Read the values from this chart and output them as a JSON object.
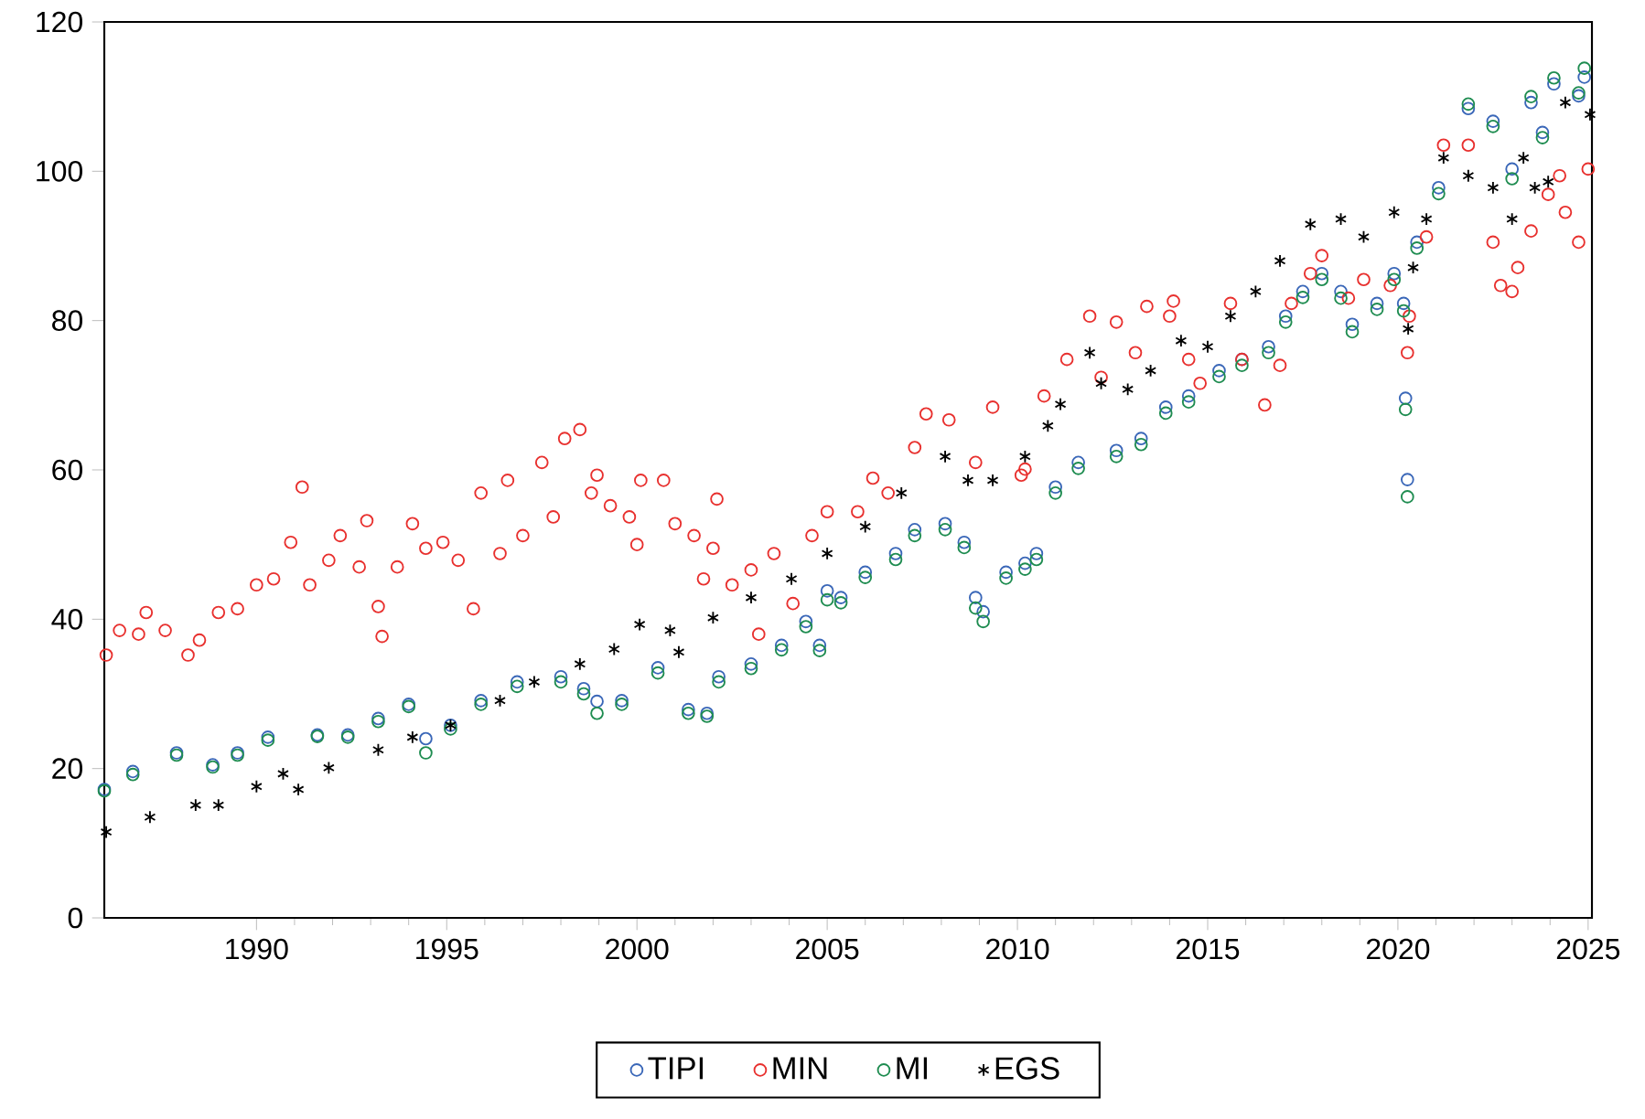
{
  "chart_data": {
    "type": "scatter",
    "xlim": [
      1986,
      2025.1
    ],
    "ylim": [
      0,
      120
    ],
    "xticks": [
      1990,
      1995,
      2000,
      2005,
      2010,
      2015,
      2020,
      2025
    ],
    "yticks": [
      0,
      20,
      40,
      60,
      80,
      100,
      120
    ],
    "grid": false,
    "legend": "bottom",
    "series": [
      {
        "name": "TIPI",
        "color": "#3a67b8",
        "marker": "circle",
        "x": [
          1986.0,
          1986.75,
          1987.9,
          1988.85,
          1989.5,
          1990.3,
          1991.6,
          1992.4,
          1993.2,
          1994.0,
          1994.45,
          1995.1,
          1995.9,
          1996.85,
          1998.0,
          1998.6,
          1998.95,
          1999.6,
          2000.55,
          2001.35,
          2001.84,
          2002.15,
          2003.0,
          2003.8,
          2004.44,
          2004.8,
          2005.0,
          2005.36,
          2006.0,
          2006.8,
          2007.3,
          2008.1,
          2008.6,
          2008.9,
          2009.1,
          2009.7,
          2010.2,
          2010.5,
          2011.0,
          2011.6,
          2012.6,
          2013.25,
          2013.9,
          2014.5,
          2015.3,
          2015.9,
          2016.6,
          2017.05,
          2017.5,
          2018.0,
          2018.5,
          2018.8,
          2019.45,
          2019.9,
          2020.15,
          2020.2,
          2020.25,
          2020.5,
          2021.07,
          2021.85,
          2022.5,
          2023.0,
          2023.5,
          2023.8,
          2024.1,
          2024.75,
          2024.9
        ],
        "values": [
          17.2,
          19.6,
          22.1,
          20.5,
          22.1,
          24.2,
          24.5,
          24.5,
          26.7,
          28.6,
          24.0,
          25.8,
          29.1,
          31.6,
          32.3,
          30.7,
          29.0,
          29.1,
          33.5,
          27.9,
          27.4,
          32.3,
          34.0,
          36.5,
          39.7,
          36.5,
          43.8,
          42.9,
          46.3,
          48.8,
          52.0,
          52.8,
          50.3,
          42.9,
          41.0,
          46.3,
          47.5,
          48.8,
          57.7,
          61.0,
          62.6,
          64.2,
          68.4,
          69.9,
          73.3,
          74.8,
          76.5,
          80.6,
          83.9,
          86.3,
          83.9,
          79.5,
          82.3,
          86.3,
          82.3,
          69.6,
          58.7,
          90.5,
          97.8,
          108.4,
          106.7,
          100.3,
          109.2,
          105.2,
          111.7,
          110.1,
          112.6
        ]
      },
      {
        "name": "MIN",
        "color": "#e8302e",
        "marker": "circle",
        "x": [
          1986.05,
          1986.4,
          1986.9,
          1987.1,
          1987.6,
          1988.2,
          1988.5,
          1989.0,
          1989.5,
          1990.0,
          1990.45,
          1990.9,
          1991.2,
          1991.4,
          1991.9,
          1992.2,
          1992.7,
          1992.9,
          1993.2,
          1993.3,
          1993.7,
          1994.1,
          1994.45,
          1994.9,
          1995.3,
          1995.7,
          1995.9,
          1996.4,
          1996.6,
          1997.0,
          1997.5,
          1997.8,
          1998.1,
          1998.5,
          1998.8,
          1998.95,
          1999.3,
          1999.8,
          2000.0,
          2000.1,
          2000.7,
          2001.0,
          2001.5,
          2001.75,
          2002.0,
          2002.1,
          2002.5,
          2003.0,
          2003.2,
          2003.6,
          2004.1,
          2004.6,
          2005.0,
          2005.8,
          2006.2,
          2006.6,
          2007.3,
          2007.6,
          2008.2,
          2008.9,
          2009.35,
          2010.1,
          2010.2,
          2010.7,
          2011.3,
          2011.9,
          2012.2,
          2012.6,
          2013.1,
          2013.4,
          2014.0,
          2014.1,
          2014.5,
          2014.8,
          2015.6,
          2015.9,
          2016.5,
          2016.9,
          2017.2,
          2017.7,
          2018.0,
          2018.7,
          2019.1,
          2019.8,
          2020.25,
          2020.3,
          2020.75,
          2021.2,
          2021.85,
          2022.5,
          2022.7,
          2023.0,
          2023.15,
          2023.5,
          2023.95,
          2024.25,
          2024.4,
          2024.75,
          2025.0
        ],
        "values": [
          35.2,
          38.5,
          38.0,
          40.9,
          38.5,
          35.2,
          37.2,
          40.9,
          41.4,
          44.6,
          45.4,
          50.3,
          57.7,
          44.6,
          47.9,
          51.2,
          47.0,
          53.2,
          41.7,
          37.7,
          47.0,
          52.8,
          49.5,
          50.3,
          47.9,
          41.4,
          56.9,
          48.8,
          58.6,
          51.2,
          61.0,
          53.7,
          64.2,
          65.4,
          56.9,
          59.3,
          55.2,
          53.7,
          50.0,
          58.6,
          58.6,
          52.8,
          51.2,
          45.4,
          49.5,
          56.1,
          44.6,
          46.6,
          38.0,
          48.8,
          42.1,
          51.2,
          54.4,
          54.4,
          58.9,
          56.9,
          63.0,
          67.5,
          66.7,
          61.0,
          68.4,
          59.3,
          60.1,
          69.9,
          74.8,
          80.6,
          72.4,
          79.8,
          75.7,
          81.9,
          80.6,
          82.6,
          74.8,
          71.6,
          82.3,
          74.8,
          68.7,
          74.0,
          82.3,
          86.3,
          88.7,
          83.0,
          85.5,
          84.7,
          75.7,
          80.6,
          91.2,
          103.5,
          103.5,
          90.5,
          84.7,
          83.9,
          87.1,
          92.0,
          96.9,
          99.4,
          94.5,
          90.5,
          100.3
        ]
      },
      {
        "name": "MI",
        "color": "#1e8c50",
        "marker": "circle",
        "x": [
          1986.0,
          1986.75,
          1987.9,
          1988.85,
          1989.5,
          1990.3,
          1991.6,
          1992.4,
          1993.2,
          1994.0,
          1994.45,
          1995.1,
          1995.9,
          1996.85,
          1998.0,
          1998.6,
          1998.95,
          1999.6,
          2000.55,
          2001.35,
          2001.84,
          2002.15,
          2003.0,
          2003.8,
          2004.44,
          2004.8,
          2005.0,
          2005.36,
          2006.0,
          2006.8,
          2007.3,
          2008.1,
          2008.6,
          2008.9,
          2009.1,
          2009.7,
          2010.2,
          2010.5,
          2011.0,
          2011.6,
          2012.6,
          2013.25,
          2013.9,
          2014.5,
          2015.3,
          2015.9,
          2016.6,
          2017.05,
          2017.5,
          2018.0,
          2018.5,
          2018.8,
          2019.45,
          2019.9,
          2020.15,
          2020.2,
          2020.25,
          2020.5,
          2021.07,
          2021.85,
          2022.5,
          2023.0,
          2023.5,
          2023.8,
          2024.1,
          2024.75,
          2024.9
        ],
        "values": [
          17.0,
          19.2,
          21.8,
          20.2,
          21.8,
          23.8,
          24.3,
          24.2,
          26.3,
          28.3,
          22.1,
          25.3,
          28.6,
          31.0,
          31.6,
          30.0,
          27.4,
          28.6,
          32.8,
          27.4,
          27.0,
          31.6,
          33.4,
          35.9,
          39.0,
          35.8,
          42.6,
          42.2,
          45.6,
          48.0,
          51.2,
          52.0,
          49.6,
          41.5,
          39.7,
          45.5,
          46.7,
          48.0,
          56.9,
          60.2,
          61.8,
          63.4,
          67.6,
          69.1,
          72.5,
          74.0,
          75.7,
          79.8,
          83.1,
          85.5,
          83.0,
          78.5,
          81.5,
          85.5,
          81.3,
          68.1,
          56.4,
          89.7,
          97.0,
          109.0,
          106.0,
          99.0,
          110.0,
          104.5,
          112.5,
          110.5,
          113.8
        ]
      },
      {
        "name": "EGS",
        "color": "#000000",
        "marker": "cross",
        "x": [
          1986.05,
          1987.2,
          1988.4,
          1989.0,
          1990.0,
          1990.7,
          1991.1,
          1991.9,
          1993.2,
          1994.1,
          1995.1,
          1996.4,
          1997.3,
          1998.5,
          1999.4,
          2000.07,
          2000.87,
          2001.1,
          2002.0,
          2003.0,
          2004.06,
          2005.0,
          2006.0,
          2006.95,
          2008.1,
          2008.7,
          2009.35,
          2010.2,
          2010.8,
          2011.13,
          2011.9,
          2012.2,
          2012.9,
          2013.5,
          2014.3,
          2015.0,
          2015.6,
          2016.26,
          2016.9,
          2017.7,
          2018.5,
          2019.1,
          2019.9,
          2020.27,
          2020.4,
          2020.75,
          2021.2,
          2021.85,
          2022.5,
          2023.0,
          2023.3,
          2023.6,
          2023.95,
          2024.4,
          2025.05
        ],
        "values": [
          11.5,
          13.5,
          15.1,
          15.1,
          17.6,
          19.3,
          17.2,
          20.1,
          22.5,
          24.2,
          25.8,
          29.1,
          31.6,
          34.0,
          36.0,
          39.3,
          38.5,
          35.6,
          40.2,
          42.9,
          45.4,
          48.8,
          52.4,
          56.9,
          61.8,
          58.6,
          58.6,
          61.8,
          65.9,
          68.8,
          75.7,
          71.6,
          70.8,
          73.3,
          77.3,
          76.5,
          80.6,
          83.9,
          88.0,
          92.9,
          93.6,
          91.2,
          94.5,
          78.9,
          87.1,
          93.6,
          101.8,
          99.4,
          97.8,
          93.6,
          101.8,
          97.8,
          98.6,
          109.2,
          107.6
        ]
      }
    ]
  }
}
